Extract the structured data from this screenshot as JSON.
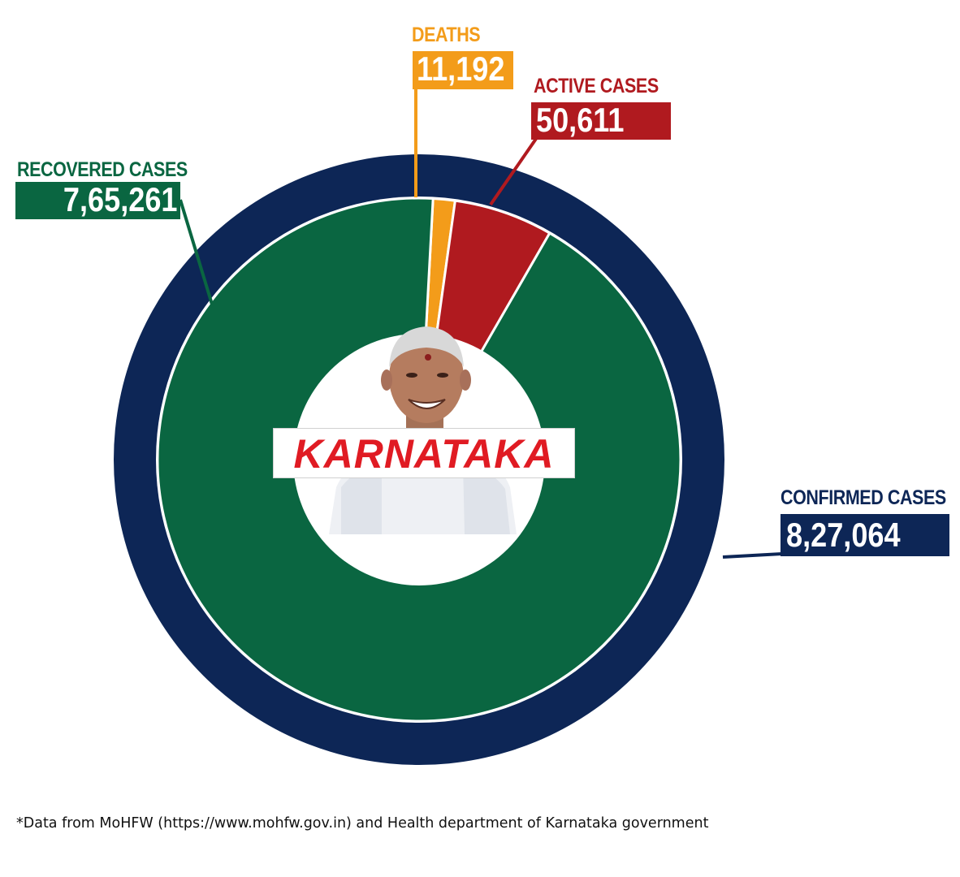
{
  "chart_data": {
    "type": "pie",
    "title": "",
    "outer_ring": {
      "name": "CONFIRMED CASES",
      "value": 827064,
      "label": "8,27,064"
    },
    "slices": [
      {
        "name": "RECOVERED CASES",
        "value": 765261,
        "label": "7,65,261"
      },
      {
        "name": "DEATHS",
        "value": 11192,
        "label": "11,192"
      },
      {
        "name": "ACTIVE CASES",
        "value": 50611,
        "label": "50,611"
      }
    ],
    "center_label": "KARNATAKA"
  },
  "colors": {
    "confirmed": "#0d2656",
    "recovered": "#0a6641",
    "deaths": "#f39c1a",
    "active": "#b01a1f",
    "center_text": "#e01b23"
  },
  "footnote": "*Data from MoHFW (https://www.mohfw.gov.in) and Health department of Karnataka government"
}
